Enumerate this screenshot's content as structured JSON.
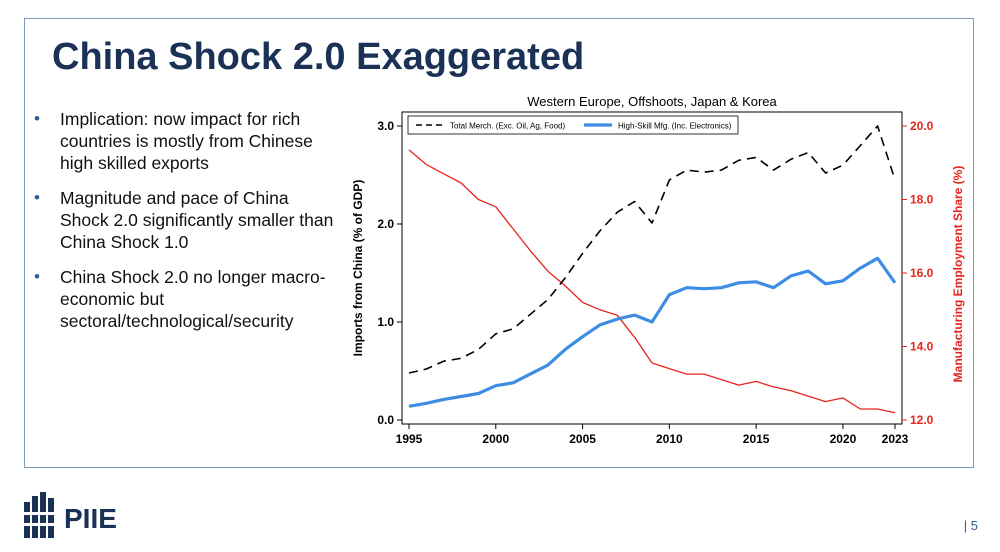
{
  "slide": {
    "title": "China Shock 2.0 Exaggerated",
    "bullets": [
      "Implication: now impact for rich countries is mostly from Chinese high skilled exports",
      "Magnitude and pace of China Shock 2.0 significantly smaller than China Shock 1.0",
      "China Shock 2.0 no longer  macro-economic but sectoral/technological/security"
    ],
    "bullet_symbol": "•",
    "logo_text": "PIIE",
    "page_number": "| 5"
  },
  "colors": {
    "title": "#1b3155",
    "frame": "#7f9bb8",
    "total_merch": "#000000",
    "high_skill": "#3d8de4",
    "employment": "#e8241c",
    "logo": "#1b3155"
  },
  "chart_data": {
    "type": "line",
    "title": "Western Europe, Offshoots, Japan & Korea",
    "ylabel": "Imports from China (% of GDP)",
    "y2label": "Manufacturing Employment Share (%)",
    "xticks": [
      "1995",
      "2000",
      "2005",
      "2010",
      "2015",
      "2020",
      "2023"
    ],
    "xlim": [
      1995,
      2023
    ],
    "ylim": [
      0,
      3.0
    ],
    "yticks": [
      "0.0",
      "1.0",
      "2.0",
      "3.0"
    ],
    "y2lim": [
      12.0,
      20.0
    ],
    "y2ticks": [
      "12.0",
      "14.0",
      "16.0",
      "18.0",
      "20.0"
    ],
    "legend_position": "top",
    "x": [
      1995,
      1996,
      1997,
      1998,
      1999,
      2000,
      2001,
      2002,
      2003,
      2004,
      2005,
      2006,
      2007,
      2008,
      2009,
      2010,
      2011,
      2012,
      2013,
      2014,
      2015,
      2016,
      2017,
      2018,
      2019,
      2020,
      2021,
      2022,
      2023
    ],
    "series": [
      {
        "name": "Total Merch. (Exc. Oil, Ag, Food)",
        "axis": "left",
        "style": "dashed",
        "values": [
          0.48,
          0.52,
          0.6,
          0.63,
          0.72,
          0.88,
          0.93,
          1.08,
          1.23,
          1.45,
          1.7,
          1.93,
          2.12,
          2.23,
          2.01,
          2.45,
          2.55,
          2.53,
          2.55,
          2.65,
          2.68,
          2.55,
          2.66,
          2.73,
          2.52,
          2.6,
          2.8,
          3.0,
          2.45
        ]
      },
      {
        "name": "High-Skill Mfg. (Inc. Electronics)",
        "axis": "left",
        "style": "solid",
        "values": [
          0.14,
          0.17,
          0.21,
          0.24,
          0.27,
          0.35,
          0.38,
          0.47,
          0.56,
          0.72,
          0.85,
          0.97,
          1.03,
          1.07,
          1.0,
          1.28,
          1.35,
          1.34,
          1.35,
          1.4,
          1.41,
          1.35,
          1.47,
          1.52,
          1.39,
          1.42,
          1.55,
          1.65,
          1.4
        ]
      },
      {
        "name": "Manufacturing Employment Share",
        "axis": "right",
        "style": "solid",
        "values": [
          19.35,
          18.95,
          18.7,
          18.45,
          18.0,
          17.8,
          17.2,
          16.6,
          16.05,
          15.65,
          15.2,
          15.0,
          14.85,
          14.25,
          13.55,
          13.4,
          13.25,
          13.25,
          13.1,
          12.95,
          13.05,
          12.9,
          12.8,
          12.65,
          12.5,
          12.6,
          12.3,
          12.3,
          12.2
        ]
      }
    ]
  }
}
